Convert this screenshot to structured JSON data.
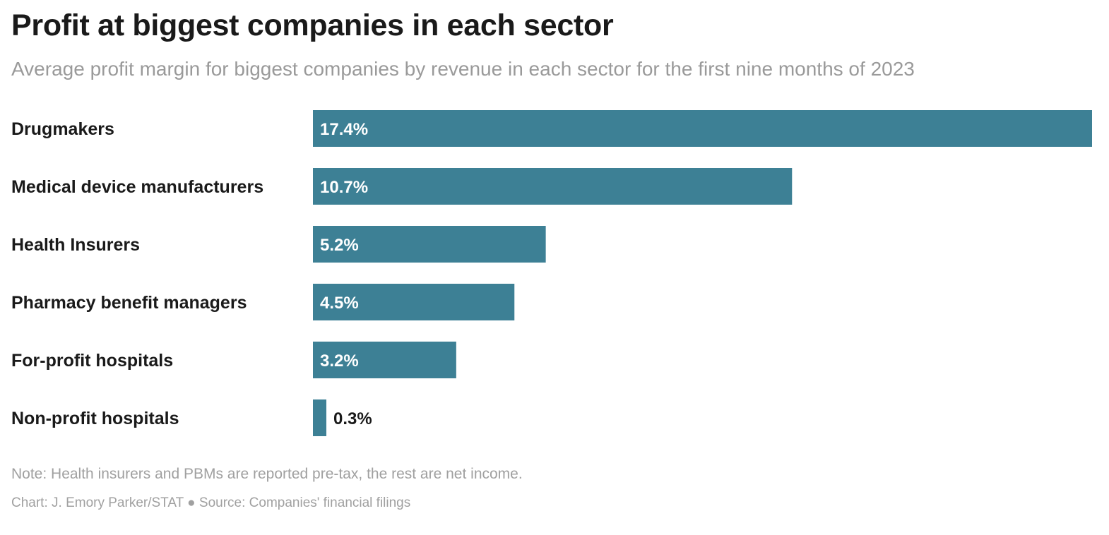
{
  "title": "Profit at biggest companies in each sector",
  "subtitle": "Average profit margin for biggest companies by revenue in each sector for the first nine months of 2023",
  "note": "Note: Health insurers and PBMs are reported pre-tax, the rest are net income.",
  "credit": "Chart: J. Emory Parker/STAT ● Source: Companies' financial filings",
  "colors": {
    "bar": "#3d8095",
    "label_inside": "#ffffff",
    "label_outside": "#1a1a1a"
  },
  "chart_data": {
    "type": "bar",
    "orientation": "horizontal",
    "categories": [
      "Drugmakers",
      "Medical device manufacturers",
      "Health Insurers",
      "Pharmacy benefit managers",
      "For-profit hospitals",
      "Non-profit hospitals"
    ],
    "values": [
      17.4,
      10.7,
      5.2,
      4.5,
      3.2,
      0.3
    ],
    "value_labels": [
      "17.4%",
      "10.7%",
      "5.2%",
      "4.5%",
      "3.2%",
      "0.3%"
    ],
    "xlim": [
      0,
      17.4
    ],
    "grid": false,
    "legend": "none"
  }
}
